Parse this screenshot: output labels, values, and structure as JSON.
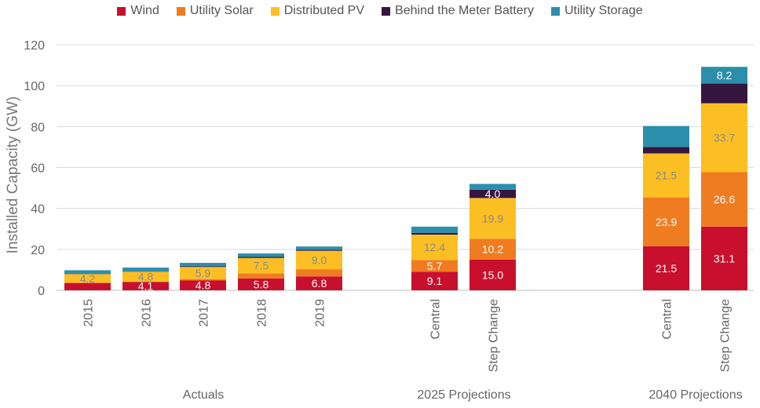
{
  "chart_data": {
    "type": "bar",
    "stacked": true,
    "ylabel": "Installed Capacity (GW)",
    "ylim": [
      0,
      120
    ],
    "yticks": [
      0,
      20,
      40,
      60,
      80,
      100,
      120
    ],
    "grid": true,
    "legend_position": "top",
    "groups": [
      {
        "label": "Actuals",
        "categories": [
          "2015",
          "2016",
          "2017",
          "2018",
          "2019"
        ]
      },
      {
        "label": "2025 Projections",
        "categories": [
          "Central",
          "Step Change"
        ]
      },
      {
        "label": "2040 Projections",
        "categories": [
          "Central",
          "Step Change"
        ]
      }
    ],
    "categories": [
      "2015",
      "2016",
      "2017",
      "2018",
      "2019",
      "Central",
      "Step Change",
      "Central",
      "Step Change"
    ],
    "series": [
      {
        "name": "Wind",
        "color": "#c8102e",
        "values": [
          3.6,
          4.1,
          4.8,
          5.8,
          6.8,
          9.1,
          15.0,
          21.5,
          31.1
        ],
        "labels": [
          "",
          "4.1",
          "4.8",
          "5.8",
          "6.8",
          "9.1",
          "15.0",
          "21.5",
          "31.1"
        ]
      },
      {
        "name": "Utility Solar",
        "color": "#f07c22",
        "values": [
          0.1,
          0.2,
          0.7,
          2.5,
          3.5,
          5.7,
          10.2,
          23.9,
          26.6
        ],
        "labels": [
          "",
          "",
          "",
          "",
          "",
          "5.7",
          "10.2",
          "23.9",
          "26.6"
        ]
      },
      {
        "name": "Distributed PV",
        "color": "#fbbf24",
        "values": [
          4.2,
          4.8,
          5.9,
          7.5,
          9.0,
          12.4,
          19.9,
          21.5,
          33.7
        ],
        "labels": [
          "4.2",
          "4.8",
          "5.9",
          "7.5",
          "9.0",
          "12.4",
          "19.9",
          "21.5",
          "33.7"
        ]
      },
      {
        "name": "Behind the Meter Battery",
        "color": "#36163e",
        "values": [
          0.1,
          0.2,
          0.3,
          0.5,
          0.5,
          0.9,
          4.0,
          3.1,
          9.6
        ],
        "labels": [
          "",
          "",
          "",
          "",
          "",
          "",
          "4.0",
          "",
          ""
        ]
      },
      {
        "name": "Utility Storage",
        "color": "#2b8fab",
        "values": [
          1.8,
          1.8,
          1.7,
          1.7,
          1.6,
          3.0,
          2.9,
          10.3,
          8.2
        ],
        "labels": [
          "",
          "",
          "",
          "",
          "",
          "",
          "",
          "",
          "8.2"
        ]
      }
    ]
  }
}
